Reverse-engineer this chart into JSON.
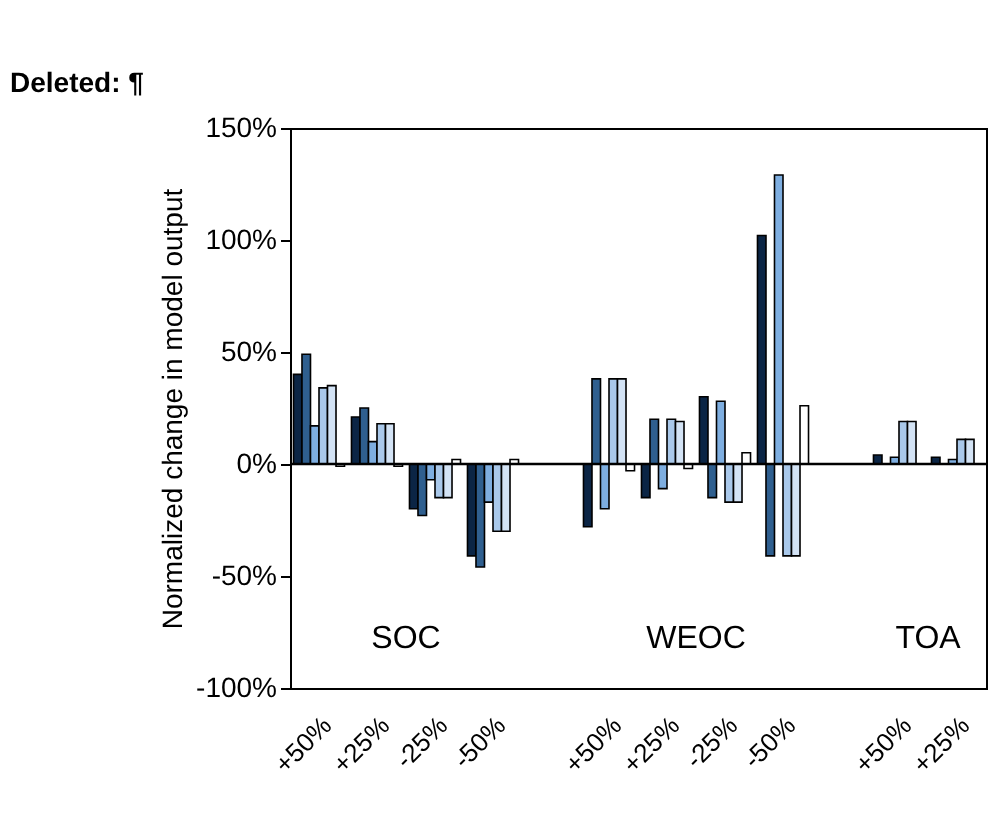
{
  "chart_data": {
    "type": "bar",
    "ylabel": "Normalized change in model output",
    "categories": [
      "+50%",
      "+25%",
      "-25%",
      "-50%",
      null,
      "+50%",
      "+25%",
      "-25%",
      "-50%",
      null,
      "+50%",
      "+25%"
    ],
    "series": [
      {
        "color": "#0b2545",
        "values": [
          40,
          21,
          -20,
          -41,
          null,
          -28,
          -15,
          30,
          102,
          null,
          4,
          3
        ]
      },
      {
        "color": "#2f5f8f",
        "values": [
          49,
          25,
          -23,
          -46,
          null,
          38,
          20,
          -15,
          -41,
          null,
          null,
          null
        ]
      },
      {
        "color": "#7eaee0",
        "values": [
          17,
          10,
          -7,
          -17,
          null,
          -20,
          -11,
          28,
          129,
          null,
          3,
          2
        ]
      },
      {
        "color": "#a9c8ea",
        "values": [
          34,
          18,
          -15,
          -30,
          null,
          38,
          20,
          -17,
          -41,
          null,
          19,
          11
        ]
      },
      {
        "color": "#d3e3f5",
        "values": [
          35,
          18,
          -15,
          -30,
          null,
          38,
          19,
          -17,
          -41,
          null,
          19,
          11
        ]
      },
      {
        "color": "#ffffff",
        "values": [
          -1,
          -1,
          2,
          2,
          null,
          -3,
          -2,
          5,
          26,
          null,
          null,
          null
        ]
      }
    ],
    "ylim": [
      -100,
      150
    ],
    "yticks": [
      {
        "value": -100,
        "label": "-100%"
      },
      {
        "value": -50,
        "label": "-50%"
      },
      {
        "value": 0,
        "label": "0%"
      },
      {
        "value": 50,
        "label": "50%"
      },
      {
        "value": 100,
        "label": "100%"
      },
      {
        "value": 150,
        "label": "150%"
      }
    ],
    "ref_lines": [
      {
        "axis": "y",
        "value": 0
      }
    ],
    "annotations": [
      "Deleted: ¶",
      "SOC",
      "WEOC",
      "TOA"
    ],
    "grid": false,
    "legend": false
  }
}
